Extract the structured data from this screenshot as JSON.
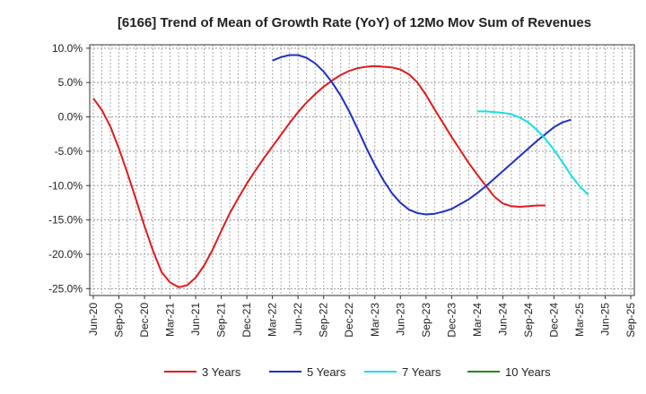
{
  "chart_data": {
    "type": "line",
    "title": "[6166]  Trend of Mean of Growth Rate (YoY) of 12Mo Mov Sum of Revenues",
    "xlabel": "",
    "ylabel": "",
    "ylim": [
      -26,
      10.5
    ],
    "y_ticks": [
      10,
      5,
      0,
      -5,
      -10,
      -15,
      -20,
      -25
    ],
    "y_tick_labels": [
      "10.0%",
      "5.0%",
      "0.0%",
      "-5.0%",
      "-10.0%",
      "-15.0%",
      "-20.0%",
      "-25.0%"
    ],
    "x_ticks": [
      "Jun-20",
      "Sep-20",
      "Dec-20",
      "Mar-21",
      "Jun-21",
      "Sep-21",
      "Dec-21",
      "Mar-22",
      "Jun-22",
      "Sep-22",
      "Dec-22",
      "Mar-23",
      "Jun-23",
      "Sep-23",
      "Dec-23",
      "Mar-24",
      "Jun-24",
      "Sep-24",
      "Dec-24",
      "Mar-25",
      "Jun-25",
      "Sep-25"
    ],
    "x_months": [
      "2020-06",
      "2020-07",
      "2020-08",
      "2020-09",
      "2020-10",
      "2020-11",
      "2020-12",
      "2021-01",
      "2021-02",
      "2021-03",
      "2021-04",
      "2021-05",
      "2021-06",
      "2021-07",
      "2021-08",
      "2021-09",
      "2021-10",
      "2021-11",
      "2021-12",
      "2022-01",
      "2022-02",
      "2022-03",
      "2022-04",
      "2022-05",
      "2022-06",
      "2022-07",
      "2022-08",
      "2022-09",
      "2022-10",
      "2022-11",
      "2022-12",
      "2023-01",
      "2023-02",
      "2023-03",
      "2023-04",
      "2023-05",
      "2023-06",
      "2023-07",
      "2023-08",
      "2023-09",
      "2023-10",
      "2023-11",
      "2023-12",
      "2024-01",
      "2024-02",
      "2024-03",
      "2024-04",
      "2024-05",
      "2024-06",
      "2024-07",
      "2024-08",
      "2024-09",
      "2024-10",
      "2024-11",
      "2024-12",
      "2025-01",
      "2025-02",
      "2025-03",
      "2025-04",
      "2025-05",
      "2025-06"
    ],
    "series": [
      {
        "name": "3 Years",
        "color": "#e31a1c",
        "values": [
          2.7,
          1.0,
          -1.4,
          -4.6,
          -8.2,
          -12.0,
          -15.9,
          -19.5,
          -22.6,
          -24.1,
          -24.8,
          -24.5,
          -23.4,
          -21.6,
          -19.3,
          -16.6,
          -14.0,
          -11.8,
          -9.7,
          -7.8,
          -6.0,
          -4.3,
          -2.6,
          -0.9,
          0.7,
          2.1,
          3.3,
          4.4,
          5.3,
          6.1,
          6.7,
          7.1,
          7.3,
          7.4,
          7.3,
          7.2,
          6.9,
          6.2,
          5.0,
          3.2,
          1.1,
          -0.9,
          -2.9,
          -4.8,
          -6.7,
          -8.4,
          -10.0,
          -11.6,
          -12.6,
          -13.0,
          -13.1,
          -13.0,
          -12.9,
          -12.9
        ]
      },
      {
        "name": "5 Years",
        "color": "#1f2fc7",
        "values": [
          null,
          null,
          null,
          null,
          null,
          null,
          null,
          null,
          null,
          null,
          null,
          null,
          null,
          null,
          null,
          null,
          null,
          null,
          null,
          null,
          null,
          8.2,
          8.7,
          9.0,
          9.0,
          8.6,
          7.8,
          6.6,
          5.0,
          3.1,
          0.8,
          -1.8,
          -4.5,
          -7.0,
          -9.2,
          -11.1,
          -12.5,
          -13.5,
          -14.0,
          -14.2,
          -14.1,
          -13.8,
          -13.4,
          -12.7,
          -12.0,
          -11.1,
          -10.1,
          -9.0,
          -7.9,
          -6.8,
          -5.7,
          -4.6,
          -3.5,
          -2.5,
          -1.5,
          -0.8,
          -0.4
        ]
      },
      {
        "name": "7 Years",
        "color": "#16e0e6",
        "values": [
          null,
          null,
          null,
          null,
          null,
          null,
          null,
          null,
          null,
          null,
          null,
          null,
          null,
          null,
          null,
          null,
          null,
          null,
          null,
          null,
          null,
          null,
          null,
          null,
          null,
          null,
          null,
          null,
          null,
          null,
          null,
          null,
          null,
          null,
          null,
          null,
          null,
          null,
          null,
          null,
          null,
          null,
          null,
          null,
          null,
          0.8,
          0.8,
          0.7,
          0.6,
          0.4,
          -0.1,
          -0.8,
          -1.9,
          -3.2,
          -4.8,
          -6.6,
          -8.5,
          -10.1,
          -11.3
        ]
      },
      {
        "name": "10 Years",
        "color": "#1e8c1e",
        "values": []
      }
    ]
  }
}
